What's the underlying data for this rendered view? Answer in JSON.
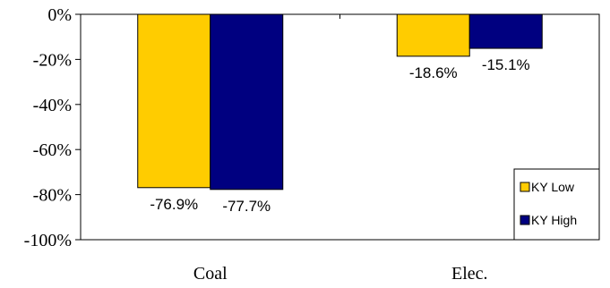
{
  "chart_data": {
    "type": "bar",
    "categories": [
      "Coal",
      "Elec."
    ],
    "series": [
      {
        "name": "KY Low",
        "values": [
          -76.9,
          -18.6
        ],
        "labels": [
          "-76.9%",
          "-18.6%"
        ],
        "color": "#FFCC00"
      },
      {
        "name": "KY High",
        "values": [
          -77.7,
          -15.1
        ],
        "labels": [
          "-77.7%",
          "-15.1%"
        ],
        "color": "#000080"
      }
    ],
    "ylim": [
      -100,
      0
    ],
    "yticks": [
      0,
      -20,
      -40,
      -60,
      -80,
      -100
    ],
    "ytick_labels": [
      "0%",
      "-20%",
      "-40%",
      "-60%",
      "-80%",
      "-100%"
    ],
    "grid": false,
    "legend_position": "bottom-right",
    "title": "",
    "xlabel": "",
    "ylabel": ""
  }
}
